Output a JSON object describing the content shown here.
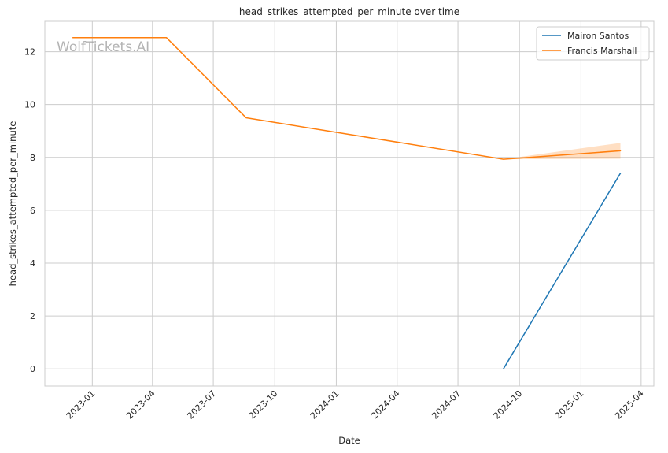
{
  "chart_data": {
    "type": "line",
    "title": "head_strikes_attempted_per_minute over time",
    "xlabel": "Date",
    "ylabel": "head_strikes_attempted_per_minute",
    "watermark": "WolfTickets.AI",
    "x_ticks": [
      "2023-01",
      "2023-04",
      "2023-07",
      "2023-10",
      "2024-01",
      "2024-04",
      "2024-07",
      "2024-10",
      "2025-01",
      "2025-04"
    ],
    "y_ticks": [
      0,
      2,
      4,
      6,
      8,
      10,
      12
    ],
    "ylim": [
      -0.65,
      13.15
    ],
    "xlim": [
      "2022-10-22",
      "2025-04-20"
    ],
    "grid": true,
    "legend_position": "top-right",
    "colors": {
      "Mairon Santos": "#1f77b4",
      "Francis Marshall": "#ff7f0e"
    },
    "series": [
      {
        "name": "Mairon Santos",
        "x": [
          "2024-09-07",
          "2025-03-01"
        ],
        "y": [
          0.0,
          7.4
        ]
      },
      {
        "name": "Francis Marshall",
        "x": [
          "2022-12-03",
          "2023-04-22",
          "2023-08-19",
          "2024-09-07",
          "2025-03-01"
        ],
        "y": [
          12.53,
          12.53,
          9.5,
          7.93,
          8.25
        ],
        "band_low": [
          12.53,
          12.53,
          9.5,
          7.93,
          7.95
        ],
        "band_high": [
          12.53,
          12.53,
          9.5,
          7.93,
          8.55
        ]
      }
    ]
  }
}
